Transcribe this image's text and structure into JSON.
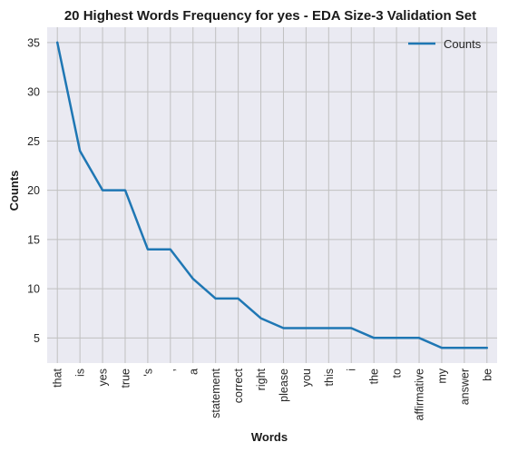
{
  "chart_data": {
    "type": "line",
    "title": "20 Highest Words Frequency for yes - EDA Size-3 Validation Set",
    "xlabel": "Words",
    "ylabel": "Counts",
    "categories": [
      "that",
      "is",
      "yes",
      "true",
      "'s",
      ",",
      "a",
      "statement",
      "correct",
      "right",
      "please",
      "you",
      "this",
      "i",
      "the",
      "to",
      "affirmative",
      "my",
      "answer",
      "be"
    ],
    "series": [
      {
        "name": "Counts",
        "color": "#1f77b4",
        "values": [
          35,
          24,
          20,
          20,
          14,
          14,
          11,
          9,
          9,
          7,
          6,
          6,
          6,
          6,
          5,
          5,
          5,
          4,
          4,
          4
        ]
      }
    ],
    "ylim": [
      2.45,
      36.55
    ],
    "yticks": [
      5,
      10,
      15,
      20,
      25,
      30,
      35
    ],
    "grid": true,
    "legend": "top-right",
    "background": "#eaeaf2",
    "grid_color": "#c0c0c0"
  }
}
